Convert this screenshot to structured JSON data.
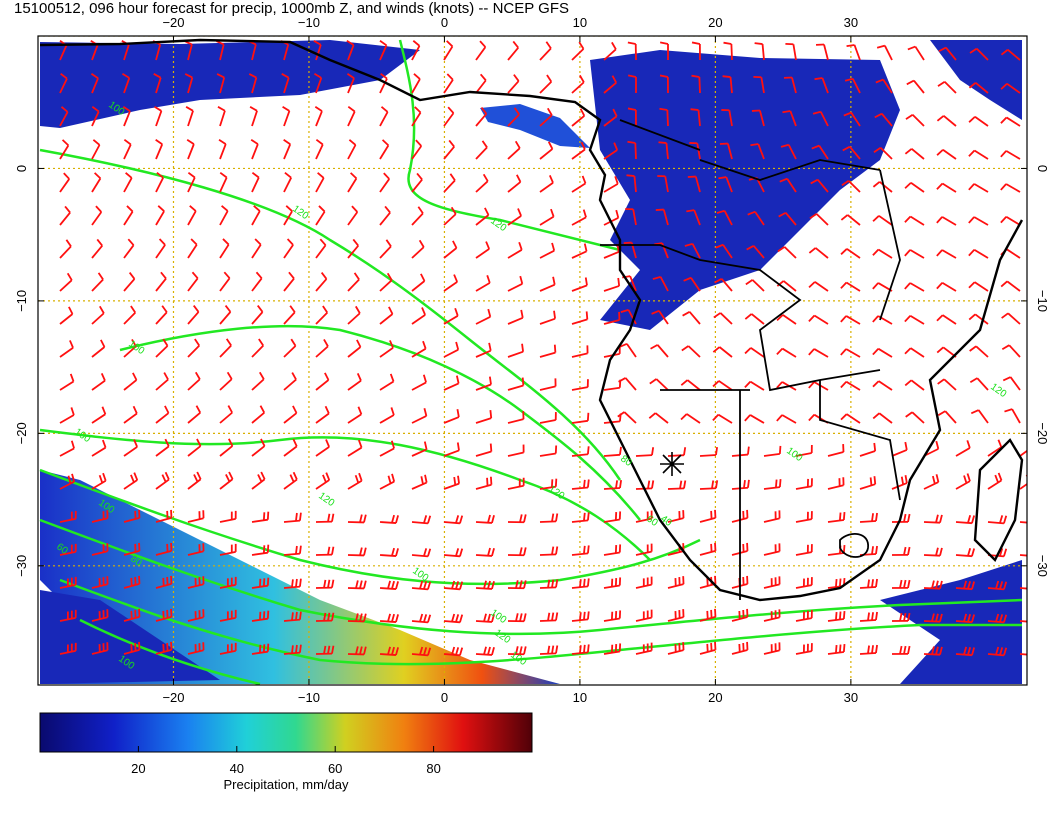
{
  "title": "15100512, 096 hour forecast for precip, 1000mb Z, and winds (knots) -- NCEP GFS",
  "map": {
    "lon_range": [
      -30,
      43
    ],
    "lat_range": [
      -39,
      10
    ],
    "lon_ticks": [
      -20,
      -10,
      0,
      10,
      20,
      30
    ],
    "lat_ticks": [
      0,
      -10,
      -20,
      -30
    ],
    "lon_tick_labels": [
      "−20",
      "−10",
      "0",
      "10",
      "20",
      "30"
    ],
    "lat_tick_labels": [
      "0",
      "−10",
      "−20",
      "−30"
    ],
    "grid": true,
    "colors": {
      "coast": "#000000",
      "contour": "#22e822",
      "barb": "#ff1010",
      "grid": "#d9b000",
      "precip_low": "#1020b0"
    },
    "contour_labels": [
      "100",
      "120",
      "120",
      "100",
      "100",
      "120",
      "100",
      "60",
      "80",
      "120",
      "80",
      "60",
      "100",
      "100",
      "120",
      "100",
      "100",
      "40",
      "100",
      "120"
    ],
    "marker": "star-icon"
  },
  "colorbar": {
    "label": "Precipitation, mm/day",
    "ticks": [
      "20",
      "40",
      "60",
      "80"
    ],
    "range": [
      0,
      100
    ]
  }
}
